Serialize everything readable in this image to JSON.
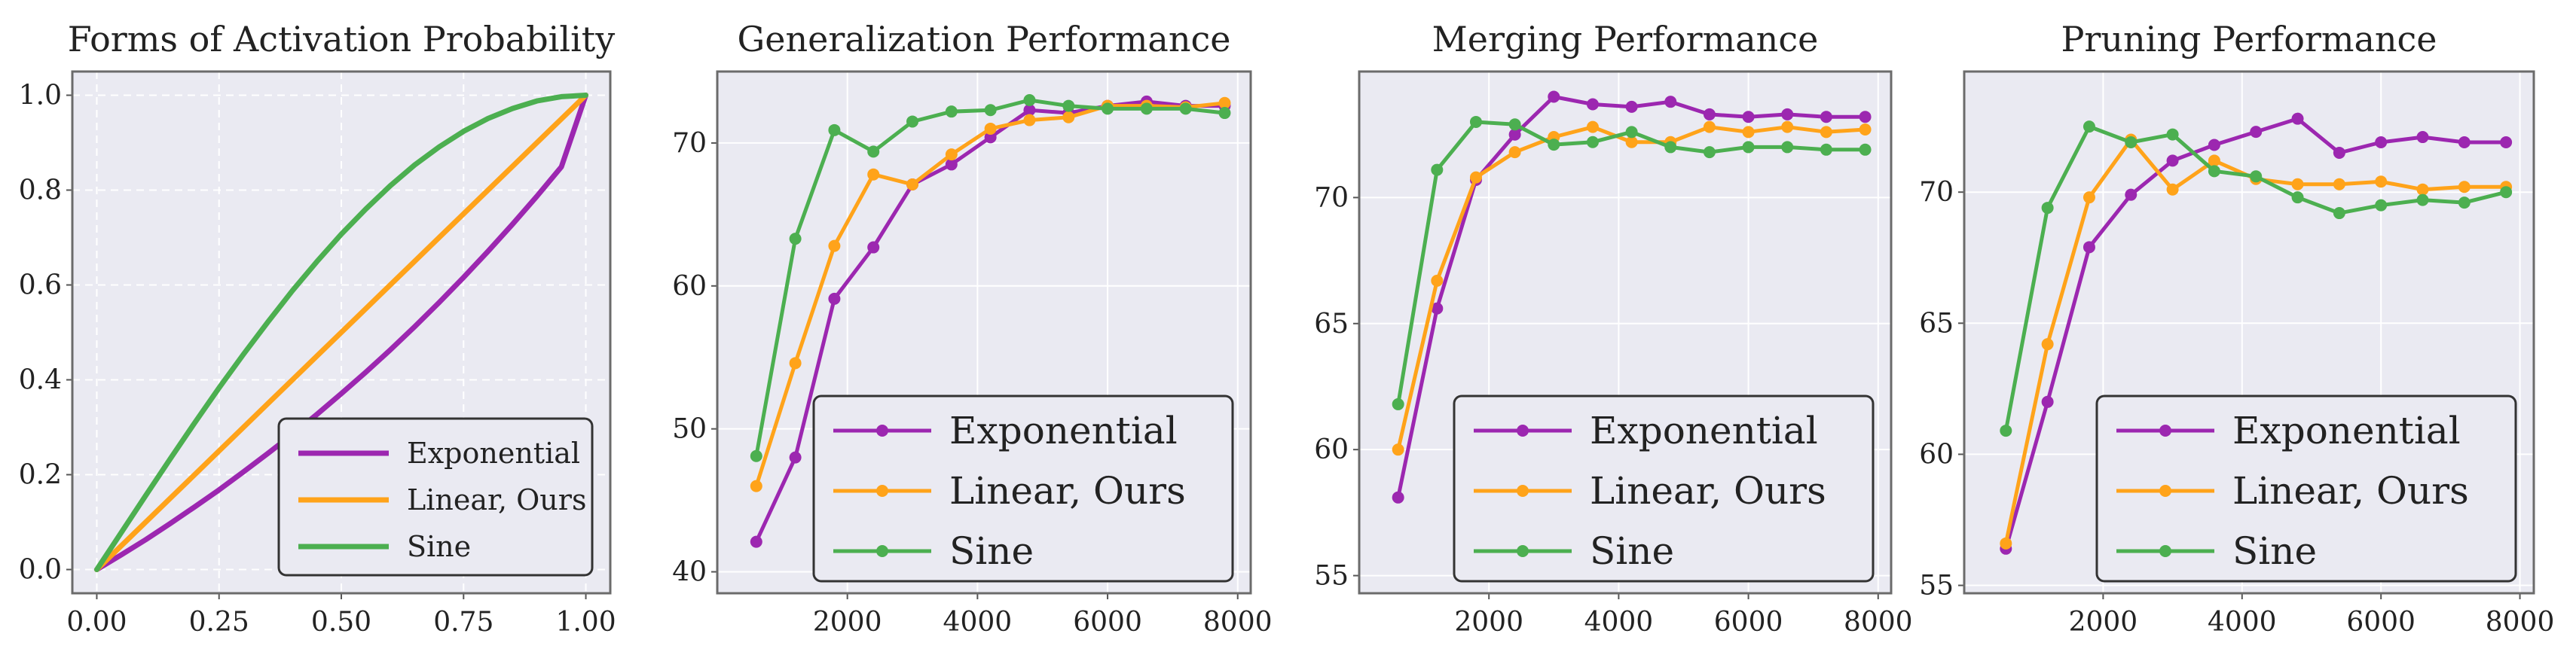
{
  "chart_data": [
    {
      "type": "line",
      "title": "Forms of Activation Probability",
      "xlabel": "",
      "ylabel": "",
      "xlim": [
        -0.05,
        1.05
      ],
      "ylim": [
        -0.05,
        1.05
      ],
      "xticks": [
        "0.00",
        "0.25",
        "0.50",
        "0.75",
        "1.00"
      ],
      "yticks": [
        "0.0",
        "0.2",
        "0.4",
        "0.6",
        "0.8",
        "1.0"
      ],
      "grid": true,
      "grid_style": "dashed",
      "legend_position": "lower-right",
      "x": [
        0.0,
        0.05,
        0.1,
        0.15,
        0.2,
        0.25,
        0.3,
        0.35,
        0.4,
        0.45,
        0.5,
        0.55,
        0.6,
        0.65,
        0.7,
        0.75,
        0.8,
        0.85,
        0.9,
        0.95,
        1.0
      ],
      "series": [
        {
          "name": "Exponential",
          "color": "#9c27b0",
          "values": [
            0.0,
            0.031,
            0.063,
            0.097,
            0.132,
            0.168,
            0.206,
            0.245,
            0.285,
            0.327,
            0.371,
            0.416,
            0.463,
            0.512,
            0.563,
            0.616,
            0.671,
            0.728,
            0.787,
            0.849,
            1.0
          ]
        },
        {
          "name": "Linear, Ours",
          "color": "#ffa31a",
          "values": [
            0.0,
            0.05,
            0.1,
            0.15,
            0.2,
            0.25,
            0.3,
            0.35,
            0.4,
            0.45,
            0.5,
            0.55,
            0.6,
            0.65,
            0.7,
            0.75,
            0.8,
            0.85,
            0.9,
            0.95,
            1.0
          ]
        },
        {
          "name": "Sine",
          "color": "#4caf50",
          "values": [
            0.0,
            0.078,
            0.156,
            0.233,
            0.309,
            0.383,
            0.454,
            0.522,
            0.588,
            0.649,
            0.707,
            0.76,
            0.809,
            0.853,
            0.891,
            0.924,
            0.951,
            0.972,
            0.988,
            0.997,
            1.0
          ]
        }
      ]
    },
    {
      "type": "line",
      "title": "Generalization Performance",
      "xlabel": "",
      "ylabel": "",
      "xlim": [
        0,
        8200
      ],
      "ylim": [
        38.5,
        75
      ],
      "xticks": [
        "2000",
        "4000",
        "6000",
        "8000"
      ],
      "yticks": [
        "40",
        "50",
        "60",
        "70"
      ],
      "grid": true,
      "legend_position": "lower-right",
      "x": [
        600,
        1200,
        1800,
        2400,
        3000,
        3600,
        4200,
        4800,
        5400,
        6000,
        6600,
        7200,
        7800
      ],
      "series": [
        {
          "name": "Exponential",
          "color": "#9c27b0",
          "values": [
            42.1,
            48.0,
            59.1,
            62.7,
            67.1,
            68.5,
            70.4,
            72.3,
            72.1,
            72.6,
            72.9,
            72.6,
            72.6
          ]
        },
        {
          "name": "Linear, Ours",
          "color": "#ffa31a",
          "values": [
            46.0,
            54.6,
            62.8,
            67.8,
            67.1,
            69.2,
            71.0,
            71.6,
            71.8,
            72.6,
            72.6,
            72.5,
            72.8
          ]
        },
        {
          "name": "Sine",
          "color": "#4caf50",
          "values": [
            48.1,
            63.3,
            70.9,
            69.4,
            71.5,
            72.2,
            72.3,
            73.0,
            72.6,
            72.4,
            72.4,
            72.4,
            72.1
          ]
        }
      ]
    },
    {
      "type": "line",
      "title": "Merging Performance",
      "xlabel": "",
      "ylabel": "",
      "xlim": [
        0,
        8200
      ],
      "ylim": [
        54.3,
        75.0
      ],
      "xticks": [
        "2000",
        "4000",
        "6000",
        "8000"
      ],
      "yticks": [
        "55",
        "60",
        "65",
        "70"
      ],
      "grid": true,
      "legend_position": "lower-right",
      "x": [
        600,
        1200,
        1800,
        2400,
        3000,
        3600,
        4200,
        4800,
        5400,
        6000,
        6600,
        7200,
        7800
      ],
      "series": [
        {
          "name": "Exponential",
          "color": "#9c27b0",
          "values": [
            58.1,
            65.6,
            70.7,
            72.5,
            74.0,
            73.7,
            73.6,
            73.8,
            73.3,
            73.2,
            73.3,
            73.2,
            73.2
          ]
        },
        {
          "name": "Linear, Ours",
          "color": "#ffa31a",
          "values": [
            60.0,
            66.7,
            70.8,
            71.8,
            72.4,
            72.8,
            72.2,
            72.2,
            72.8,
            72.6,
            72.8,
            72.6,
            72.7
          ]
        },
        {
          "name": "Sine",
          "color": "#4caf50",
          "values": [
            61.8,
            71.1,
            73.0,
            72.9,
            72.1,
            72.2,
            72.6,
            72.0,
            71.8,
            72.0,
            72.0,
            71.9,
            71.9
          ]
        }
      ]
    },
    {
      "type": "line",
      "title": "Pruning Performance",
      "xlabel": "",
      "ylabel": "",
      "xlim": [
        0,
        8200
      ],
      "ylim": [
        54.7,
        74.6
      ],
      "xticks": [
        "2000",
        "4000",
        "6000",
        "8000"
      ],
      "yticks": [
        "55",
        "60",
        "65",
        "70"
      ],
      "grid": true,
      "legend_position": "lower-right",
      "x": [
        600,
        1200,
        1800,
        2400,
        3000,
        3600,
        4200,
        4800,
        5400,
        6000,
        6600,
        7200,
        7800
      ],
      "series": [
        {
          "name": "Exponential",
          "color": "#9c27b0",
          "values": [
            56.4,
            62.0,
            67.9,
            69.9,
            71.2,
            71.8,
            72.3,
            72.8,
            71.5,
            71.9,
            72.1,
            71.9,
            71.9
          ]
        },
        {
          "name": "Linear, Ours",
          "color": "#ffa31a",
          "values": [
            56.6,
            64.2,
            69.8,
            72.0,
            70.1,
            71.2,
            70.5,
            70.3,
            70.3,
            70.4,
            70.1,
            70.2,
            70.2
          ]
        },
        {
          "name": "Sine",
          "color": "#4caf50",
          "values": [
            60.9,
            69.4,
            72.5,
            71.9,
            72.2,
            70.8,
            70.6,
            69.8,
            69.2,
            69.5,
            69.7,
            69.6,
            70.0
          ]
        }
      ]
    }
  ]
}
